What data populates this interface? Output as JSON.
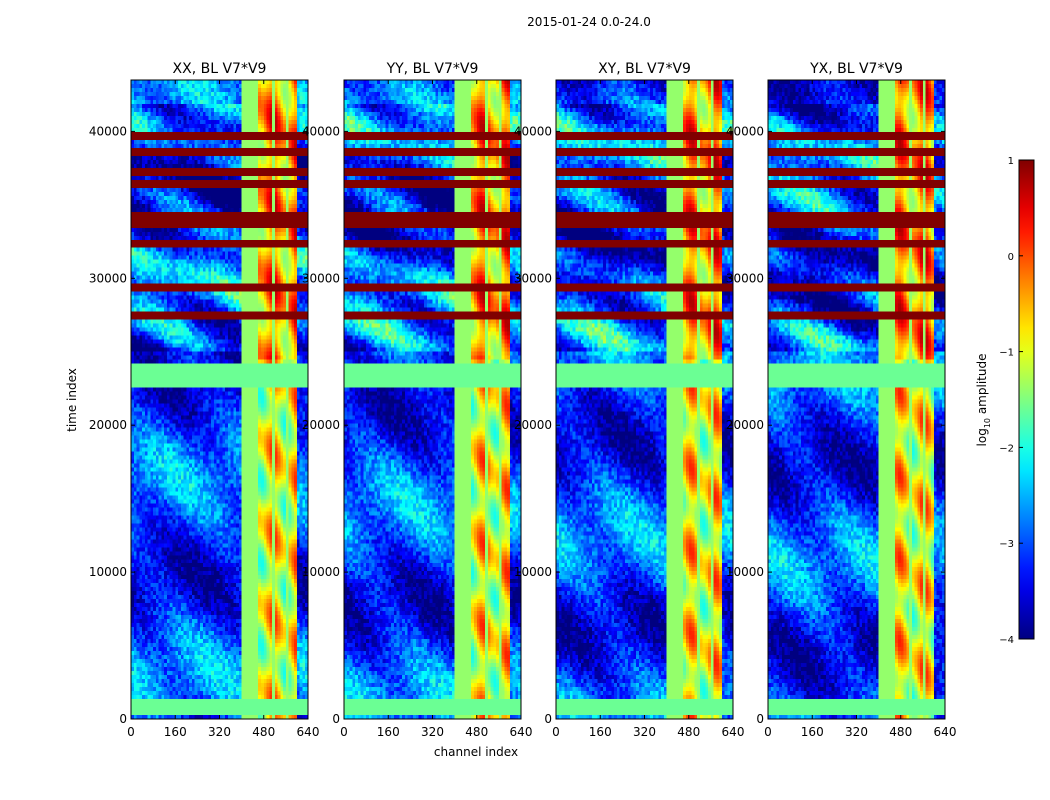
{
  "figure": {
    "suptitle": "2015-01-24 0.0-24.0",
    "shared_xlabel": "channel index",
    "shared_ylabel": "time index",
    "colormap": "jet"
  },
  "chart_data": {
    "type": "heatmap",
    "x_ticks": [
      "0",
      "160",
      "320",
      "480",
      "640"
    ],
    "y_ticks": [
      "0",
      "10000",
      "20000",
      "30000",
      "40000"
    ],
    "xlim": [
      0,
      640
    ],
    "ylim": [
      0,
      43500
    ],
    "panels": [
      {
        "title": "XX, BL V7*V9",
        "pol": "XX"
      },
      {
        "title": "YY, BL V7*V9",
        "pol": "YY"
      },
      {
        "title": "XY, BL V7*V9",
        "pol": "XY"
      },
      {
        "title": "YX, BL V7*V9",
        "pol": "YX"
      }
    ],
    "colorbar": {
      "label": "log10 amplitude",
      "label_main": "log",
      "label_sub": "10",
      "label_rest": " amplitude",
      "min": -4,
      "max": 1,
      "ticks": [
        "1",
        "0",
        "−1",
        "−2",
        "−3",
        "−4"
      ],
      "tick_values": [
        1,
        0,
        -1,
        -2,
        -3,
        -4
      ]
    },
    "features": {
      "bright_channel_band": [
        405,
        600
      ],
      "saturated_time_rows": [
        27500,
        29300,
        32300,
        33700,
        34300,
        36500,
        37200,
        38500,
        39600
      ],
      "flagged_time_band": [
        22500,
        24300
      ],
      "flagged_time_band_low": [
        400,
        1300
      ]
    }
  }
}
